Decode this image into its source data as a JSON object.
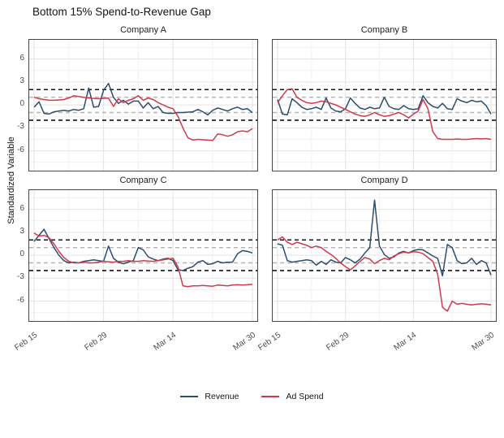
{
  "title": "Bottom 15% Spend-to-Revenue Gap",
  "y_axis": {
    "title": "Standardized Variable",
    "ticks": [
      6,
      3,
      0,
      -3,
      -6
    ]
  },
  "x_axis": {
    "ticks": [
      "Feb 15",
      "Feb 29",
      "Mar 14",
      "Mar 30"
    ]
  },
  "legend": [
    {
      "label": "Revenue",
      "color": "#2d4d6d"
    },
    {
      "label": "Ad Spend",
      "color": "#cf3b4c"
    }
  ],
  "colors": {
    "revenue": "#2d4d6d",
    "ad_spend": "#cf3b4c",
    "grid_major": "#e3e3e3",
    "grid_minor": "#f1f1f1",
    "panel_border": "#474747",
    "threshold_black": "#141414",
    "threshold_gray": "#b3b3b3",
    "tick_text": "#4d4d4d"
  },
  "chart_data": {
    "type": "line",
    "title": "Bottom 15% Spend-to-Revenue Gap",
    "ylabel": "Standardized Variable",
    "xlabel": "",
    "x_start": "Feb 15",
    "x_end": "Mar 30",
    "n_points": 45,
    "x_tick_labels": [
      "Feb 15",
      "Feb 29",
      "Mar 14",
      "Mar 30"
    ],
    "x_tick_index": [
      0,
      14,
      28,
      44
    ],
    "x_minor_index": [
      7,
      21,
      36
    ],
    "y_major": [
      -6,
      -3,
      0,
      3,
      6
    ],
    "y_minor": [
      -7.5,
      -4.5,
      -1.5,
      1.5,
      4.5,
      7.5
    ],
    "ylim": [
      -8.8,
      8.5
    ],
    "grid": true,
    "legend_position": "bottom",
    "reference_lines": [
      {
        "value": 2,
        "color": "#141414",
        "dash": "5,4",
        "width": 1.6
      },
      {
        "value": -2,
        "color": "#141414",
        "dash": "5,4",
        "width": 1.6
      },
      {
        "value": 1,
        "color": "#b3b3b3",
        "dash": "5,4",
        "width": 1.4
      },
      {
        "value": -1,
        "color": "#b3b3b3",
        "dash": "5,4",
        "width": 1.4
      }
    ],
    "series_names": [
      "Revenue",
      "Ad Spend"
    ],
    "facets": [
      {
        "title": "Company A",
        "revenue": [
          -0.3,
          0.4,
          -1.1,
          -1.2,
          -0.9,
          -0.8,
          -0.7,
          -0.8,
          -0.6,
          -0.7,
          -0.5,
          2.2,
          -0.3,
          -0.2,
          1.9,
          2.8,
          1.0,
          0.2,
          0.6,
          0.1,
          0.5,
          0.5,
          -0.4,
          0.3,
          -0.5,
          -0.2,
          -1.0,
          -1.1,
          -1.1,
          -1.0,
          -1.0,
          -0.95,
          -0.9,
          -0.6,
          -0.9,
          -1.3,
          -0.7,
          -0.4,
          -0.6,
          -0.8,
          -0.5,
          -0.3,
          -0.6,
          -0.5,
          -1.0
        ],
        "ad_spend": [
          1.0,
          0.8,
          0.7,
          0.6,
          0.6,
          0.65,
          0.7,
          0.9,
          1.2,
          1.1,
          1.0,
          0.9,
          0.85,
          0.8,
          0.85,
          0.9,
          -0.2,
          0.8,
          0.3,
          0.6,
          0.8,
          1.2,
          0.6,
          0.9,
          0.7,
          0.3,
          0.0,
          -0.3,
          -0.5,
          -1.5,
          -3.0,
          -4.3,
          -4.6,
          -4.5,
          -4.55,
          -4.6,
          -4.65,
          -3.8,
          -3.9,
          -4.1,
          -3.9,
          -3.5,
          -3.4,
          -3.5,
          -3.1
        ]
      },
      {
        "title": "Company B",
        "revenue": [
          0.7,
          -1.2,
          -1.3,
          0.8,
          0.3,
          -0.3,
          -0.6,
          -0.5,
          -0.3,
          -0.6,
          0.9,
          -0.4,
          -0.8,
          -0.9,
          -0.5,
          0.9,
          0.2,
          -0.4,
          -0.6,
          -0.3,
          -0.5,
          -0.4,
          1.0,
          -0.2,
          -0.5,
          -0.6,
          -0.1,
          -0.5,
          -0.6,
          -0.5,
          1.2,
          0.3,
          -0.2,
          -0.4,
          0.2,
          -0.5,
          -0.6,
          0.8,
          0.5,
          0.3,
          0.6,
          0.4,
          0.5,
          -0.1,
          -1.2
        ],
        "ad_spend": [
          0.3,
          1.2,
          2.0,
          2.1,
          1.0,
          0.6,
          0.3,
          0.2,
          0.3,
          0.5,
          0.4,
          0.2,
          0.0,
          -0.3,
          -0.6,
          -0.9,
          -1.2,
          -1.4,
          -1.5,
          -1.3,
          -1.0,
          -1.3,
          -1.5,
          -1.4,
          -1.2,
          -1.0,
          -1.3,
          -1.7,
          -1.2,
          -0.8,
          0.7,
          -0.5,
          -3.5,
          -4.4,
          -4.5,
          -4.5,
          -4.5,
          -4.45,
          -4.5,
          -4.5,
          -4.45,
          -4.4,
          -4.45,
          -4.4,
          -4.5
        ]
      },
      {
        "title": "Company C",
        "revenue": [
          1.8,
          2.6,
          3.4,
          2.2,
          1.0,
          0.0,
          -0.7,
          -1.0,
          -0.9,
          -1.0,
          -0.8,
          -0.7,
          -0.6,
          -0.7,
          -0.8,
          1.2,
          -0.4,
          -0.9,
          -1.1,
          -0.9,
          -0.7,
          1.0,
          0.7,
          -0.2,
          -0.5,
          -0.7,
          -0.5,
          -0.4,
          -0.7,
          -1.9,
          -2.0,
          -1.7,
          -1.5,
          -0.9,
          -0.7,
          -1.2,
          -1.1,
          -0.8,
          -1.0,
          -0.9,
          -0.9,
          0.2,
          0.6,
          0.5,
          0.3
        ],
        "ad_spend": [
          2.9,
          2.5,
          2.6,
          2.3,
          1.5,
          0.5,
          -0.3,
          -0.8,
          -1.0,
          -1.0,
          -0.9,
          -1.0,
          -1.0,
          -0.9,
          -0.8,
          -0.85,
          -0.9,
          -0.8,
          -0.8,
          -0.7,
          -0.8,
          -0.8,
          -0.7,
          -0.75,
          -0.8,
          -0.7,
          -0.6,
          -0.5,
          -0.4,
          -1.5,
          -4.0,
          -4.1,
          -4.0,
          -4.0,
          -3.95,
          -4.0,
          -4.05,
          -3.9,
          -3.95,
          -4.0,
          -3.9,
          -3.85,
          -3.9,
          -3.85,
          -3.8
        ]
      },
      {
        "title": "Company D",
        "revenue": [
          1.5,
          1.3,
          -0.7,
          -0.9,
          -0.8,
          -0.7,
          -0.6,
          -0.7,
          -1.3,
          -0.8,
          -1.2,
          -0.6,
          -0.9,
          -1.0,
          -0.3,
          -0.6,
          -1.0,
          -0.5,
          0.3,
          1.0,
          7.2,
          1.2,
          0.1,
          -0.4,
          -0.2,
          0.3,
          0.5,
          0.3,
          0.6,
          0.75,
          0.7,
          0.3,
          -0.1,
          -0.4,
          -2.7,
          1.4,
          1.0,
          -0.7,
          -1.1,
          -1.0,
          -0.4,
          -1.2,
          -0.7,
          -1.0,
          -2.6
        ],
        "ad_spend": [
          2.0,
          2.4,
          1.7,
          1.4,
          1.7,
          1.5,
          1.3,
          1.0,
          1.2,
          1.0,
          0.5,
          0.1,
          -0.4,
          -1.0,
          -1.5,
          -1.9,
          -1.4,
          -0.8,
          -0.3,
          -0.5,
          -1.1,
          -0.7,
          -0.4,
          -0.6,
          -0.1,
          0.2,
          0.4,
          0.3,
          0.45,
          0.4,
          0.2,
          -0.3,
          -0.8,
          -2.5,
          -6.8,
          -7.3,
          -6.0,
          -6.4,
          -6.3,
          -6.4,
          -6.5,
          -6.4,
          -6.35,
          -6.4,
          -6.5
        ]
      }
    ]
  }
}
